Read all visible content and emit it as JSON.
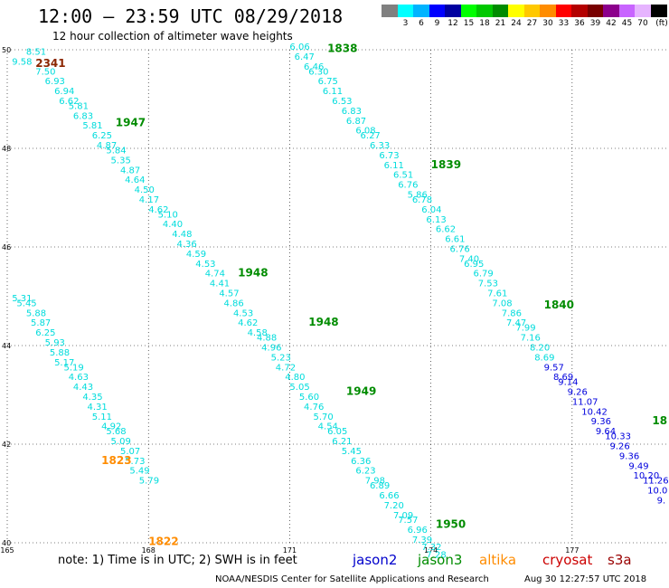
{
  "header": {
    "title": "12:00 – 23:59 UTC 08/29/2018",
    "subtitle": "12 hour collection of altimeter wave heights"
  },
  "legend_scale": {
    "unit": "(ft)",
    "bins": [
      {
        "color": "#808080",
        "label": ""
      },
      {
        "color": "#00ffff",
        "label": "3"
      },
      {
        "color": "#00b4ff",
        "label": "6"
      },
      {
        "color": "#0000ff",
        "label": "9"
      },
      {
        "color": "#0000a0",
        "label": "12"
      },
      {
        "color": "#00ff00",
        "label": "15"
      },
      {
        "color": "#00c800",
        "label": "18"
      },
      {
        "color": "#008c00",
        "label": "21"
      },
      {
        "color": "#ffff00",
        "label": "24"
      },
      {
        "color": "#ffc800",
        "label": "27"
      },
      {
        "color": "#ff8c00",
        "label": "30"
      },
      {
        "color": "#ff0000",
        "label": "33"
      },
      {
        "color": "#b40000",
        "label": "36"
      },
      {
        "color": "#780000",
        "label": "39"
      },
      {
        "color": "#8c008c",
        "label": "42"
      },
      {
        "color": "#c864ff",
        "label": "45"
      },
      {
        "color": "#e6b4ff",
        "label": "70"
      },
      {
        "color": "#000000",
        "label": ""
      }
    ]
  },
  "footer": {
    "note": "note:  1) Time is in UTC;  2) SWH is in feet",
    "missions": [
      {
        "name": "jason2",
        "color": "#0000cc"
      },
      {
        "name": "jason3",
        "color": "#008c00"
      },
      {
        "name": "altika",
        "color": "#ff8c00"
      },
      {
        "name": "cryosat",
        "color": "#cc0000"
      },
      {
        "name": "s3a",
        "color": "#990000"
      }
    ],
    "credit": "NOAA/NESDIS Center for Satellite Applications and Research",
    "timestamp": "Aug 30 12:27:57 UTC 2018"
  },
  "chart_data": {
    "type": "scatter",
    "xlim": [
      165,
      179
    ],
    "ylim": [
      40,
      50
    ],
    "x_ticks": [
      "165",
      "168",
      "171",
      "174",
      "177"
    ],
    "y_ticks": [
      "40",
      "42",
      "44",
      "46",
      "48",
      "50"
    ],
    "grid": true,
    "colors": {
      "cyan": "#00dcdc",
      "blue": "#0000dd",
      "green": "#008c00",
      "orange": "#ff8c00",
      "brown": "#8b2500"
    },
    "tracks": [
      {
        "color": "cyan",
        "points": [
          [
            165.4,
            49.9,
            "8.51"
          ],
          [
            165.1,
            49.7,
            "9.58"
          ],
          [
            165.6,
            49.5,
            "7.50"
          ],
          [
            165.8,
            49.3,
            "6.93"
          ],
          [
            166.0,
            49.1,
            "6.94"
          ],
          [
            166.1,
            48.9,
            "6.62"
          ],
          [
            166.3,
            48.8,
            "5.81"
          ],
          [
            166.4,
            48.6,
            "6.83"
          ],
          [
            166.6,
            48.4,
            "5.81"
          ],
          [
            166.8,
            48.2,
            "6.25"
          ],
          [
            166.9,
            48.0,
            "4.87"
          ],
          [
            167.1,
            47.9,
            "5.84"
          ],
          [
            167.2,
            47.7,
            "5.35"
          ],
          [
            167.4,
            47.5,
            "4.87"
          ],
          [
            167.5,
            47.3,
            "4.64"
          ],
          [
            167.7,
            47.1,
            "4.50"
          ],
          [
            167.8,
            46.9,
            "4.17"
          ],
          [
            168.0,
            46.7,
            "4.62"
          ],
          [
            168.2,
            46.6,
            "5.10"
          ],
          [
            168.3,
            46.4,
            "4.40"
          ],
          [
            168.5,
            46.2,
            "4.48"
          ],
          [
            168.6,
            46.0,
            "4.36"
          ],
          [
            168.8,
            45.8,
            "4.59"
          ],
          [
            169.0,
            45.6,
            "4.53"
          ],
          [
            169.2,
            45.4,
            "4.74"
          ],
          [
            169.3,
            45.2,
            "4.41"
          ],
          [
            169.5,
            45.0,
            "4.57"
          ],
          [
            169.6,
            44.8,
            "4.86"
          ],
          [
            169.8,
            44.6,
            "4.53"
          ],
          [
            169.9,
            44.4,
            "4.62"
          ],
          [
            170.1,
            44.2,
            "4.58"
          ],
          [
            170.3,
            44.1,
            "4.88"
          ],
          [
            170.4,
            43.9,
            "4.96"
          ],
          [
            170.6,
            43.7,
            "5.23"
          ],
          [
            170.7,
            43.5,
            "4.72"
          ],
          [
            170.9,
            43.3,
            "4.80"
          ],
          [
            171.0,
            43.1,
            "5.05"
          ],
          [
            171.2,
            42.9,
            "5.60"
          ],
          [
            171.3,
            42.7,
            "4.76"
          ],
          [
            171.5,
            42.5,
            "5.70"
          ],
          [
            171.6,
            42.3,
            "4.54"
          ],
          [
            171.8,
            42.2,
            "6.05"
          ],
          [
            171.9,
            42.0,
            "6.21"
          ],
          [
            172.1,
            41.8,
            "5.45"
          ],
          [
            172.3,
            41.6,
            "6.36"
          ],
          [
            172.4,
            41.4,
            "6.23"
          ],
          [
            172.6,
            41.2,
            "7.98"
          ],
          [
            172.7,
            41.1,
            "6.89"
          ],
          [
            172.9,
            40.9,
            "6.66"
          ],
          [
            173.0,
            40.7,
            "7.20"
          ],
          [
            173.2,
            40.5,
            "7.09"
          ],
          [
            173.3,
            40.4,
            "7.57"
          ],
          [
            173.5,
            40.2,
            "6.96"
          ],
          [
            173.6,
            40.0,
            "7.39"
          ],
          [
            173.8,
            39.85,
            "7.32"
          ],
          [
            173.9,
            39.7,
            "7.28"
          ]
        ]
      },
      {
        "color": "cyan",
        "points": [
          [
            171.0,
            50.0,
            "6.06"
          ],
          [
            171.1,
            49.8,
            "6.47"
          ],
          [
            171.3,
            49.6,
            "6.46"
          ],
          [
            171.4,
            49.5,
            "6.30"
          ],
          [
            171.6,
            49.3,
            "6.75"
          ],
          [
            171.7,
            49.1,
            "6.11"
          ],
          [
            171.9,
            48.9,
            "6.53"
          ],
          [
            172.1,
            48.7,
            "6.83"
          ],
          [
            172.2,
            48.5,
            "6.87"
          ],
          [
            172.4,
            48.3,
            "6.08"
          ],
          [
            172.5,
            48.2,
            "6.27"
          ],
          [
            172.7,
            48.0,
            "6.33"
          ],
          [
            172.9,
            47.8,
            "6.73"
          ],
          [
            173.0,
            47.6,
            "6.11"
          ],
          [
            173.2,
            47.4,
            "6.51"
          ],
          [
            173.3,
            47.2,
            "6.76"
          ],
          [
            173.5,
            47.0,
            "5.86"
          ],
          [
            173.6,
            46.9,
            "6.78"
          ],
          [
            173.8,
            46.7,
            "6.04"
          ],
          [
            173.9,
            46.5,
            "6.13"
          ],
          [
            174.1,
            46.3,
            "6.62"
          ],
          [
            174.3,
            46.1,
            "6.61"
          ],
          [
            174.4,
            45.9,
            "6.76"
          ],
          [
            174.6,
            45.7,
            "7.40"
          ],
          [
            174.7,
            45.6,
            "6.95"
          ],
          [
            174.9,
            45.4,
            "6.79"
          ],
          [
            175.0,
            45.2,
            "7.53"
          ],
          [
            175.2,
            45.0,
            "7.61"
          ],
          [
            175.3,
            44.8,
            "7.08"
          ],
          [
            175.5,
            44.6,
            "7.86"
          ],
          [
            175.6,
            44.4,
            "7.47"
          ],
          [
            175.8,
            44.3,
            "7.99"
          ],
          [
            175.9,
            44.1,
            "7.16"
          ],
          [
            176.1,
            43.9,
            "8.20"
          ],
          [
            176.2,
            43.7,
            "8.69"
          ]
        ]
      },
      {
        "color": "blue",
        "points": [
          [
            176.4,
            43.5,
            "9.57"
          ],
          [
            176.6,
            43.3,
            "8.69"
          ],
          [
            176.7,
            43.2,
            "9.14"
          ],
          [
            176.9,
            43.0,
            "9.26"
          ],
          [
            177.0,
            42.8,
            "11.07"
          ],
          [
            177.2,
            42.6,
            "10.42"
          ],
          [
            177.4,
            42.4,
            "9.36"
          ],
          [
            177.5,
            42.2,
            "9.64"
          ],
          [
            177.7,
            42.1,
            "10.33"
          ],
          [
            177.8,
            41.9,
            "9.26"
          ],
          [
            178.0,
            41.7,
            "9.36"
          ],
          [
            178.2,
            41.5,
            "9.49"
          ],
          [
            178.3,
            41.3,
            "10.20"
          ],
          [
            178.5,
            41.2,
            "11.26"
          ],
          [
            178.6,
            41.0,
            "10.0"
          ],
          [
            178.8,
            40.8,
            "9."
          ]
        ]
      },
      {
        "color": "cyan",
        "points": [
          [
            165.1,
            44.9,
            "5.31"
          ],
          [
            165.2,
            44.8,
            "5.45"
          ],
          [
            165.4,
            44.6,
            "5.88"
          ],
          [
            165.5,
            44.4,
            "5.87"
          ],
          [
            165.6,
            44.2,
            "6.25"
          ],
          [
            165.8,
            44.0,
            "5.93"
          ],
          [
            165.9,
            43.8,
            "5.88"
          ],
          [
            166.0,
            43.6,
            "5.17"
          ],
          [
            166.2,
            43.5,
            "5.19"
          ],
          [
            166.3,
            43.3,
            "4.63"
          ],
          [
            166.4,
            43.1,
            "4.43"
          ],
          [
            166.6,
            42.9,
            "4.35"
          ],
          [
            166.7,
            42.7,
            "4.31"
          ],
          [
            166.8,
            42.5,
            "5.11"
          ],
          [
            167.0,
            42.3,
            "4.92"
          ],
          [
            167.1,
            42.2,
            "5.68"
          ],
          [
            167.2,
            42.0,
            "5.09"
          ],
          [
            167.4,
            41.8,
            "5.07"
          ],
          [
            167.5,
            41.6,
            "5.73"
          ],
          [
            167.6,
            41.4,
            "5.49"
          ],
          [
            167.8,
            41.2,
            "5.79"
          ]
        ]
      }
    ],
    "time_labels": [
      {
        "text": "2341",
        "x": 165.6,
        "y": 49.65,
        "color": "brown"
      },
      {
        "text": "1838",
        "x": 171.8,
        "y": 49.95,
        "color": "green"
      },
      {
        "text": "1947",
        "x": 167.3,
        "y": 48.45,
        "color": "green"
      },
      {
        "text": "1839",
        "x": 174.0,
        "y": 47.6,
        "color": "green"
      },
      {
        "text": "1948",
        "x": 169.9,
        "y": 45.4,
        "color": "green"
      },
      {
        "text": "1840",
        "x": 176.4,
        "y": 44.75,
        "color": "green"
      },
      {
        "text": "1948",
        "x": 171.4,
        "y": 44.4,
        "color": "green"
      },
      {
        "text": "1949",
        "x": 172.2,
        "y": 43.0,
        "color": "green"
      },
      {
        "text": "18",
        "x": 178.7,
        "y": 42.4,
        "color": "green"
      },
      {
        "text": "1823",
        "x": 167.0,
        "y": 41.6,
        "color": "orange"
      },
      {
        "text": "1950",
        "x": 174.1,
        "y": 40.3,
        "color": "green"
      },
      {
        "text": "1822",
        "x": 168.0,
        "y": 39.95,
        "color": "orange"
      }
    ]
  }
}
